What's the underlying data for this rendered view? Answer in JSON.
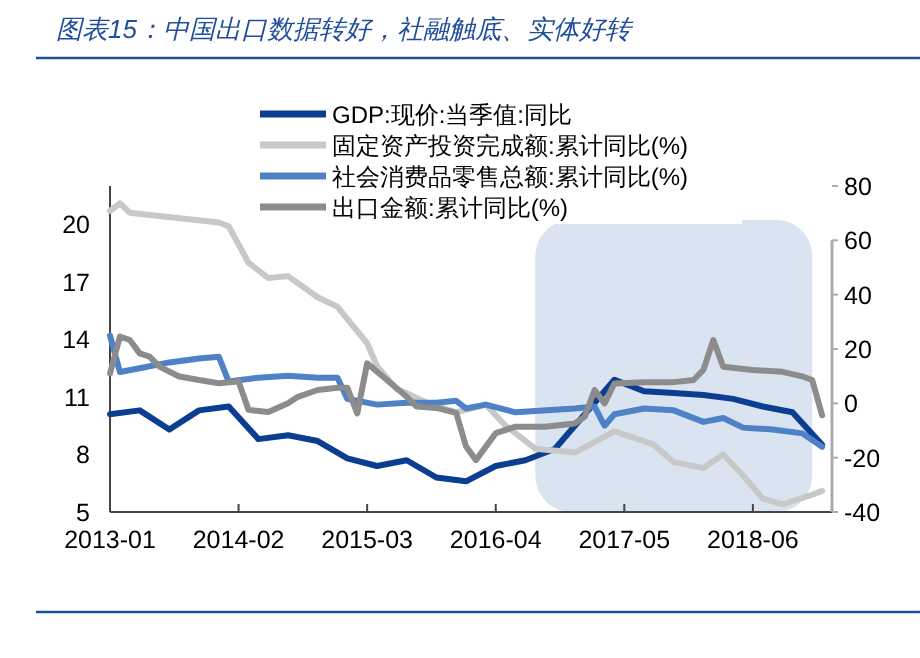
{
  "chart_data": {
    "type": "line",
    "title": "图表15：中国出口数据转好，社融触底、实体好转",
    "legend": "top",
    "xlim": [
      "2013-01",
      "2019-02"
    ],
    "xticks": [
      {
        "value": "2013-01",
        "label": "2013-01"
      },
      {
        "value": "2014-02",
        "label": "2014-02"
      },
      {
        "value": "2015-03",
        "label": "2015-03"
      },
      {
        "value": "2016-04",
        "label": "2016-04"
      },
      {
        "value": "2017-05",
        "label": "2017-05"
      },
      {
        "value": "2018-06",
        "label": "2018-06"
      }
    ],
    "ylim": [
      5,
      22
    ],
    "yticks": [
      5,
      8,
      11,
      14,
      17,
      20
    ],
    "y2lim": [
      -40,
      80
    ],
    "y2ticks": [
      -40,
      -20,
      0,
      20,
      40,
      60,
      80
    ],
    "bands": [
      {
        "axis": "x",
        "from": "2016-08",
        "to": "2018-12",
        "color": "#dae3f0"
      }
    ],
    "series": [
      {
        "name": "GDP:现价:当季值:同比",
        "color": "#0b3d91",
        "x": [
          "2013-01",
          "2013-04",
          "2013-07",
          "2013-10",
          "2014-01",
          "2014-04",
          "2014-07",
          "2014-10",
          "2015-01",
          "2015-04",
          "2015-07",
          "2015-10",
          "2016-01",
          "2016-04",
          "2016-07",
          "2016-10",
          "2017-01",
          "2017-04",
          "2017-07",
          "2017-10",
          "2018-01",
          "2018-04",
          "2018-07",
          "2018-10",
          "2019-01"
        ],
        "values": [
          10.1,
          10.3,
          9.3,
          10.3,
          10.5,
          8.8,
          9.0,
          8.7,
          7.8,
          7.4,
          7.7,
          6.8,
          6.6,
          7.4,
          7.7,
          8.3,
          10.1,
          11.9,
          11.3,
          11.2,
          11.1,
          10.9,
          10.5,
          10.2,
          8.5
        ]
      },
      {
        "name": "固定资产投资完成额:累计同比(%)",
        "color": "#c8c8c8",
        "x": [
          "2013-01",
          "2013-02",
          "2013-03",
          "2013-12",
          "2014-01",
          "2014-03",
          "2014-05",
          "2014-07",
          "2014-10",
          "2014-12",
          "2015-03",
          "2015-04",
          "2015-06",
          "2015-07",
          "2015-09",
          "2015-12",
          "2016-03",
          "2016-05",
          "2016-08",
          "2016-12",
          "2017-04",
          "2017-07",
          "2017-08",
          "2017-10",
          "2018-01",
          "2018-03",
          "2018-05",
          "2018-07",
          "2018-09",
          "2018-12",
          "2019-01"
        ],
        "values": [
          20.7,
          21.1,
          20.6,
          20.1,
          19.9,
          18.0,
          17.2,
          17.3,
          16.2,
          15.7,
          13.8,
          12.6,
          11.4,
          11.2,
          10.7,
          10.2,
          10.6,
          9.5,
          8.3,
          8.1,
          9.2,
          8.7,
          8.5,
          7.6,
          7.3,
          8.0,
          6.9,
          5.7,
          5.4,
          5.9,
          6.1
        ]
      },
      {
        "name": "社会消费品零售总额:累计同比(%)",
        "color": "#4f81c7",
        "x": [
          "2013-01",
          "2013-02",
          "2013-04",
          "2013-07",
          "2013-10",
          "2013-12",
          "2014-01",
          "2014-04",
          "2014-07",
          "2014-10",
          "2014-12",
          "2015-01",
          "2015-04",
          "2015-07",
          "2015-10",
          "2015-12",
          "2016-01",
          "2016-03",
          "2016-06",
          "2016-12",
          "2017-02",
          "2017-03",
          "2017-04",
          "2017-07",
          "2017-10",
          "2018-01",
          "2018-03",
          "2018-05",
          "2018-08",
          "2018-11",
          "2019-01"
        ],
        "values": [
          14.2,
          12.3,
          12.5,
          12.8,
          13.0,
          13.1,
          11.8,
          12.0,
          12.1,
          12.0,
          12.0,
          10.9,
          10.6,
          10.7,
          10.7,
          10.8,
          10.4,
          10.6,
          10.2,
          10.4,
          10.5,
          9.5,
          10.1,
          10.4,
          10.3,
          9.7,
          9.9,
          9.4,
          9.3,
          9.1,
          8.4
        ]
      },
      {
        "name": "出口金额:累计同比(%)",
        "color": "#8c8c8c",
        "axis": "y2",
        "x": [
          "2013-01",
          "2013-02",
          "2013-03",
          "2013-04",
          "2013-05",
          "2013-06",
          "2013-08",
          "2013-10",
          "2013-12",
          "2014-02",
          "2014-03",
          "2014-05",
          "2014-07",
          "2014-08",
          "2014-10",
          "2014-12",
          "2015-01",
          "2015-02",
          "2015-03",
          "2015-05",
          "2015-07",
          "2015-08",
          "2015-10",
          "2015-12",
          "2016-01",
          "2016-02",
          "2016-04",
          "2016-06",
          "2016-09",
          "2016-12",
          "2017-01",
          "2017-02",
          "2017-03",
          "2017-04",
          "2017-07",
          "2017-10",
          "2017-12",
          "2018-01",
          "2018-02",
          "2018-03",
          "2018-06",
          "2018-09",
          "2018-11",
          "2018-12",
          "2019-01"
        ],
        "values": [
          11.0,
          24.6,
          23.3,
          18.4,
          17.2,
          13.5,
          9.9,
          8.6,
          7.4,
          8.0,
          -2.4,
          -3.2,
          0.0,
          2.4,
          4.9,
          5.7,
          5.7,
          -3.7,
          14.7,
          8.6,
          2.4,
          -1.2,
          -1.7,
          -3.5,
          -15.9,
          -20.9,
          -11.0,
          -8.6,
          -8.6,
          -7.4,
          -4.9,
          4.9,
          -0.1,
          7.3,
          7.8,
          7.8,
          8.6,
          12.3,
          23.3,
          13.5,
          12.3,
          11.6,
          9.9,
          8.6,
          -4.4
        ]
      }
    ]
  }
}
